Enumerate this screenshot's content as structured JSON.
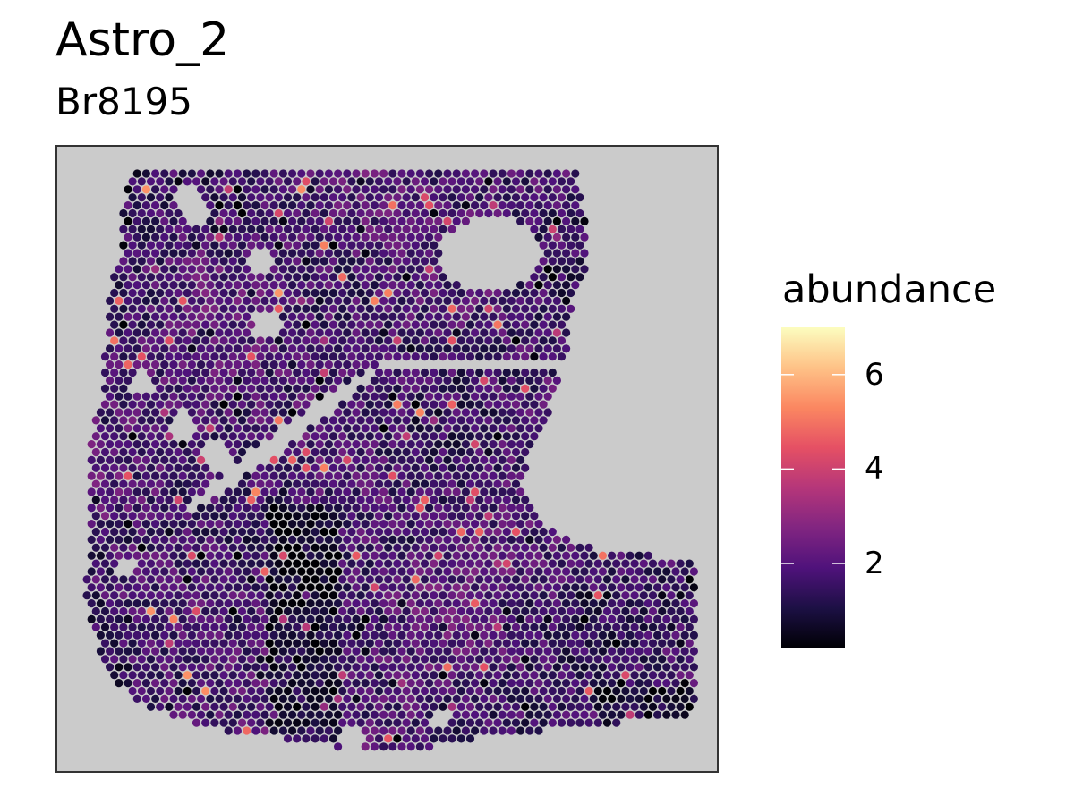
{
  "chart_data": {
    "type": "heatmap",
    "title": "Astro_2",
    "subtitle": "Br8195",
    "legend": {
      "title": "abundance",
      "breaks": [
        2,
        4,
        6
      ],
      "labels": [
        "2",
        "4",
        "6"
      ],
      "limits": [
        0.2,
        7.0
      ],
      "placement": "right"
    },
    "colormap": [
      "#000004",
      "#1c1044",
      "#4f127b",
      "#812581",
      "#b5367a",
      "#e55064",
      "#fb8761",
      "#fec287",
      "#fcfdbf"
    ],
    "panel_background": "#cbcbcb",
    "grid": false,
    "axes_visible": false
  }
}
